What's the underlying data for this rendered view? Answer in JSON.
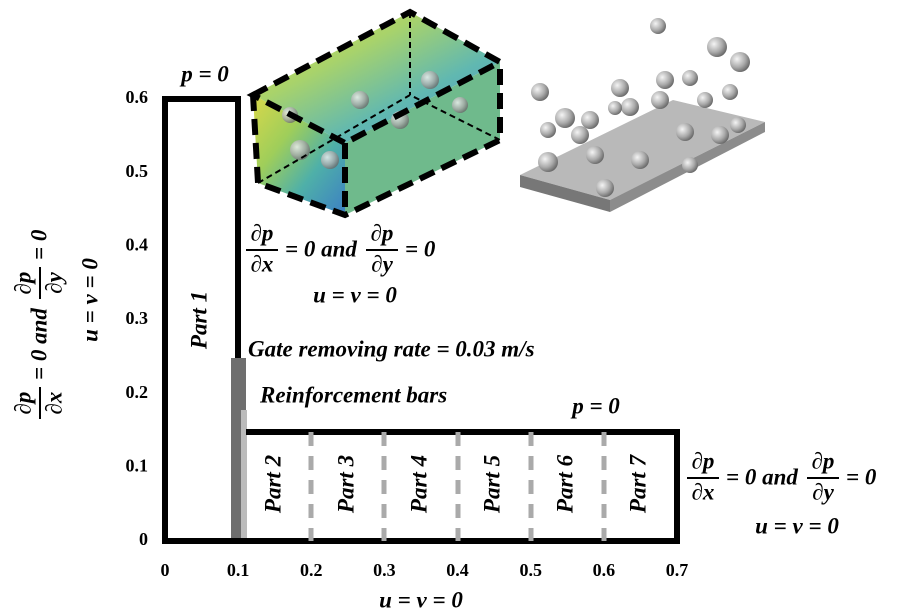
{
  "axes": {
    "xticks": [
      0,
      0.1,
      0.2,
      0.3,
      0.4,
      0.5,
      0.6,
      0.7
    ],
    "yticks": [
      0,
      0.1,
      0.2,
      0.3,
      0.4,
      0.5,
      0.6
    ]
  },
  "labels": {
    "top_pressure": "p = 0",
    "tank_pressure": "p = 0",
    "gate": "Gate removing rate = 0.03 m/s",
    "bars": "Reinforcement bars",
    "bottom": "u = v = 0"
  },
  "parts": [
    "Part 1",
    "Part 2",
    "Part 3",
    "Part 4",
    "Part 5",
    "Part 6",
    "Part 7"
  ],
  "conditions": [
    {
      "dp1": "∂p",
      "dx": "∂x",
      "mid": "= 0 and",
      "dp2": "∂p",
      "dy": "∂y",
      "end": "= 0",
      "velocity": "u = v = 0"
    },
    {
      "dp1": "∂p",
      "dx": "∂x",
      "mid": "= 0 and",
      "dp2": "∂p",
      "dy": "∂y",
      "end": "= 0",
      "velocity": "u = v = 0"
    },
    {
      "dp1": "∂p",
      "dx": "∂x",
      "mid": "= 0 and",
      "dp2": "∂p",
      "dy": "∂y",
      "end": "= 0",
      "velocity": "u = v = 0"
    }
  ]
}
